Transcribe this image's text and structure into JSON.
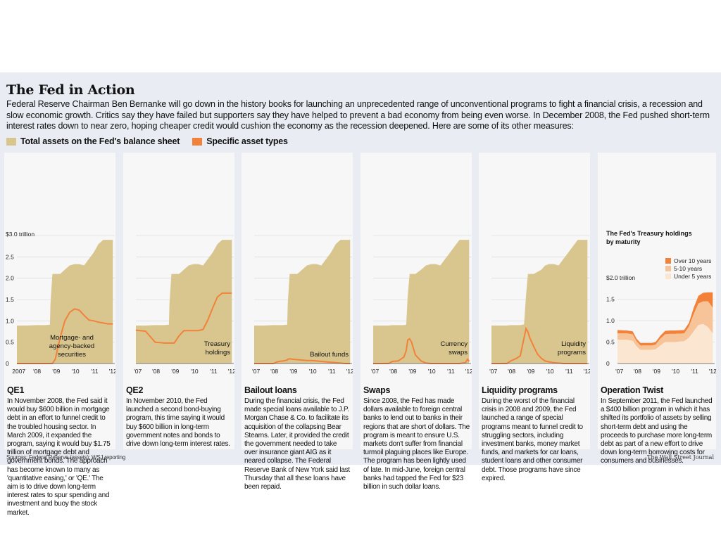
{
  "headline": "The Fed in Action",
  "intro": "Federal Reserve Chairman Ben Bernanke will go down in the history books for launching an unprecedented range of unconventional programs to fight a financial crisis, a recession and slow economic growth. Critics say they have failed but supporters say they have helped to prevent a bad economy from being even worse. In December 2008, the Fed pushed short-term interest rates down to near zero, hoping cheaper credit would cushion the economy as the recession deepened. Here are some of its other measures:",
  "legend": [
    {
      "label": "Total assets on the Fed's balance sheet",
      "color": "#d9c68f"
    },
    {
      "label": "Specific asset types",
      "color": "#f2823a"
    }
  ],
  "colors": {
    "total": "#d9c68f",
    "specific": "#f2823a",
    "over10": "#f2823a",
    "mid": "#f7c49a",
    "under5": "#fbe6d2"
  },
  "chart_data": [
    {
      "type": "area",
      "title": "QE1",
      "x": [
        2007.0,
        2007.5,
        2008.0,
        2008.5,
        2008.72,
        2008.75,
        2008.85,
        2009.0,
        2009.25,
        2009.5,
        2009.75,
        2010.0,
        2010.25,
        2010.5,
        2010.75,
        2011.0,
        2011.25,
        2011.5,
        2011.75,
        2012.0
      ],
      "total": [
        0.89,
        0.89,
        0.9,
        0.9,
        0.91,
        1.4,
        2.1,
        2.1,
        2.1,
        2.2,
        2.3,
        2.33,
        2.33,
        2.3,
        2.45,
        2.6,
        2.8,
        2.9,
        2.9,
        2.9
      ],
      "specific": [
        0,
        0,
        0,
        0,
        0,
        0,
        0,
        0.1,
        0.6,
        1.0,
        1.2,
        1.28,
        1.25,
        1.13,
        1.02,
        1.0,
        0.97,
        0.95,
        0.93,
        0.93
      ],
      "annotation": [
        "Mortgage- and",
        "agency-backed",
        "securities"
      ],
      "x_ticks": [
        "2007",
        "'08",
        "'09",
        "'10",
        "'11",
        "'12"
      ],
      "y_ticks": [
        "$3.0 trillion",
        "2.5",
        "2.0",
        "1.5",
        "1.0",
        "0.5",
        "0"
      ],
      "ylim": [
        0,
        3.0
      ],
      "text": "In November 2008, the Fed said it would buy $600 billion in mortgage debt in an effort to funnel credit to the troubled housing sector. In March 2009, it expanded the program, saying it would buy $1.75 trillion of mortgage debt and government bonds. The approach has become known to many as 'quantitative easing,' or 'QE.' The aim is to drive down long-term interest rates to spur spending and investment and buoy the stock market."
    },
    {
      "type": "area",
      "title": "QE2",
      "x": [
        2007.0,
        2007.5,
        2008.0,
        2008.5,
        2008.72,
        2008.75,
        2008.85,
        2009.0,
        2009.25,
        2009.5,
        2009.75,
        2010.0,
        2010.25,
        2010.5,
        2010.75,
        2011.0,
        2011.25,
        2011.5,
        2011.75,
        2012.0
      ],
      "total": [
        0.89,
        0.89,
        0.9,
        0.9,
        0.91,
        1.4,
        2.1,
        2.1,
        2.1,
        2.2,
        2.3,
        2.33,
        2.33,
        2.3,
        2.45,
        2.6,
        2.8,
        2.9,
        2.9,
        2.9
      ],
      "specific": [
        0.78,
        0.76,
        0.5,
        0.48,
        0.48,
        0.48,
        0.48,
        0.48,
        0.65,
        0.77,
        0.77,
        0.77,
        0.77,
        0.8,
        1.02,
        1.3,
        1.56,
        1.65,
        1.65,
        1.65
      ],
      "annotation": [
        "Treasury",
        "holdings"
      ],
      "x_ticks": [
        "'07",
        "'08",
        "'09",
        "'10",
        "'11",
        "'12"
      ],
      "y_ticks": [],
      "ylim": [
        0,
        3.0
      ],
      "text": "In November 2010, the Fed launched a second bond-buying program, this time saying it would buy $600 billion in long-term government notes and bonds to drive down long-term interest rates."
    },
    {
      "type": "area",
      "title": "Bailout loans",
      "x": [
        2007.0,
        2007.5,
        2008.0,
        2008.15,
        2008.3,
        2008.5,
        2008.72,
        2008.75,
        2008.85,
        2009.0,
        2009.25,
        2009.5,
        2009.75,
        2010.0,
        2010.25,
        2010.5,
        2010.75,
        2011.0,
        2011.25,
        2011.5,
        2011.75,
        2012.0
      ],
      "total": [
        0.89,
        0.89,
        0.9,
        0.9,
        0.9,
        0.9,
        0.91,
        1.4,
        2.1,
        2.1,
        2.1,
        2.2,
        2.3,
        2.33,
        2.33,
        2.3,
        2.45,
        2.6,
        2.8,
        2.9,
        2.9,
        2.9
      ],
      "specific": [
        0,
        0,
        0,
        0.03,
        0.05,
        0.06,
        0.08,
        0.1,
        0.11,
        0.1,
        0.09,
        0.08,
        0.07,
        0.07,
        0.06,
        0.05,
        0.04,
        0.03,
        0.02,
        0.01,
        0.0,
        0.0
      ],
      "annotation": [
        "Bailout funds"
      ],
      "x_ticks": [
        "'07",
        "'08",
        "'09",
        "'10",
        "'11",
        "'12"
      ],
      "y_ticks": [],
      "ylim": [
        0,
        3.0
      ],
      "text": "During the financial crisis, the Fed made special loans available to J.P. Morgan Chase & Co. to facilitate its acquisition of the collapsing Bear Stearns. Later, it provided the credit the government needed to take over insurance giant AIG as it neared collapse. The Federal Reserve Bank of New York said last Thursday that all these loans have been repaid."
    },
    {
      "type": "area",
      "title": "Swaps",
      "x": [
        2007.0,
        2007.8,
        2008.0,
        2008.3,
        2008.6,
        2008.72,
        2008.8,
        2008.9,
        2009.0,
        2009.2,
        2009.5,
        2009.75,
        2010.0,
        2010.25,
        2010.5,
        2010.75,
        2011.0,
        2011.5,
        2011.8,
        2011.92,
        2012.0
      ],
      "total": [
        0.89,
        0.89,
        0.9,
        0.9,
        0.9,
        0.91,
        1.6,
        2.1,
        2.1,
        2.1,
        2.2,
        2.3,
        2.33,
        2.33,
        2.3,
        2.45,
        2.6,
        2.9,
        2.9,
        2.9,
        2.9
      ],
      "specific": [
        0,
        0,
        0.05,
        0.06,
        0.15,
        0.3,
        0.55,
        0.58,
        0.5,
        0.2,
        0.06,
        0.01,
        0,
        0,
        0,
        0,
        0,
        0,
        0.02,
        0.1,
        0.05
      ],
      "annotation": [
        "Currency",
        "swaps"
      ],
      "x_ticks": [
        "'07",
        "'08",
        "'09",
        "'10",
        "'11",
        "'12"
      ],
      "y_ticks": [],
      "ylim": [
        0,
        3.0
      ],
      "text": "Since 2008, the Fed has made dollars available to foreign central banks to lend out to banks in their regions that are short of dollars. The program is meant to ensure U.S. markets don't suffer from financial turmoil plaguing places like Europe. The program has been lightly used of late. In mid-June, foreign central banks had tapped the Fed for $23 billion in such dollar loans."
    },
    {
      "type": "area",
      "title": "Liquidity programs",
      "x": [
        2007.0,
        2007.8,
        2008.0,
        2008.3,
        2008.5,
        2008.7,
        2008.8,
        2008.9,
        2009.0,
        2009.2,
        2009.4,
        2009.6,
        2009.8,
        2010.0,
        2010.25,
        2010.5,
        2010.75,
        2011.0,
        2011.5,
        2012.0
      ],
      "total": [
        0.89,
        0.89,
        0.9,
        0.9,
        0.9,
        0.92,
        1.6,
        2.1,
        2.1,
        2.1,
        2.15,
        2.2,
        2.3,
        2.33,
        2.33,
        2.3,
        2.45,
        2.6,
        2.9,
        2.9
      ],
      "specific": [
        0,
        0,
        0.06,
        0.12,
        0.18,
        0.6,
        0.82,
        0.74,
        0.6,
        0.4,
        0.22,
        0.12,
        0.06,
        0.04,
        0.02,
        0.01,
        0,
        0,
        0,
        0
      ],
      "annotation": [
        "Liquidity",
        "programs"
      ],
      "x_ticks": [
        "'07",
        "'08",
        "'09",
        "'10",
        "'11",
        "'12"
      ],
      "y_ticks": [],
      "ylim": [
        0,
        3.0
      ],
      "text": "During the worst of the financial crisis in 2008 and 2009, the Fed launched a range of special programs meant to funnel credit to struggling sectors, including investment banks, money market funds, and markets for car loans, student loans and other consumer debt. Those programs have since expired."
    },
    {
      "type": "area",
      "title": "Operation Twist",
      "subtitle": [
        "The Fed's Treasury holdings",
        "by maturity"
      ],
      "legend": [
        "Over 10 years",
        "5-10 years",
        "Under 5 years"
      ],
      "x": [
        2007.0,
        2007.5,
        2007.8,
        2008.0,
        2008.2,
        2008.5,
        2008.8,
        2009.0,
        2009.25,
        2009.5,
        2009.75,
        2010.0,
        2010.5,
        2010.75,
        2011.0,
        2011.25,
        2011.5,
        2011.75,
        2012.0
      ],
      "total": [
        0.78,
        0.77,
        0.75,
        0.58,
        0.48,
        0.48,
        0.48,
        0.5,
        0.65,
        0.76,
        0.77,
        0.77,
        0.78,
        0.95,
        1.3,
        1.58,
        1.65,
        1.66,
        1.66
      ],
      "five_to_ten_top": [
        0.7,
        0.7,
        0.68,
        0.52,
        0.42,
        0.42,
        0.42,
        0.44,
        0.58,
        0.68,
        0.69,
        0.69,
        0.7,
        0.86,
        1.15,
        1.4,
        1.45,
        1.45,
        1.3
      ],
      "under_five_top": [
        0.55,
        0.55,
        0.53,
        0.4,
        0.32,
        0.32,
        0.32,
        0.33,
        0.42,
        0.5,
        0.5,
        0.5,
        0.52,
        0.6,
        0.75,
        0.9,
        0.92,
        0.85,
        0.7
      ],
      "x_ticks": [
        "'07",
        "'08",
        "'09",
        "'10",
        "'11",
        "'12"
      ],
      "y_ticks": [
        "$2.0 trillion",
        "1.5",
        "1.0",
        "0.5",
        "0"
      ],
      "ylim": [
        0,
        2.0
      ],
      "text": "In September 2011, the Fed launched a $400 billion program in which it has shifted its portfolio of assets by selling short-term debt and using the proceeds to purchase more long-term debt as part of a new effort to drive down long-term borrowing costs for consumers and businesses."
    }
  ],
  "sources": "Sources: Federal Reserve (assets); WSJ reporting",
  "credit": "The Wall Street Journal"
}
